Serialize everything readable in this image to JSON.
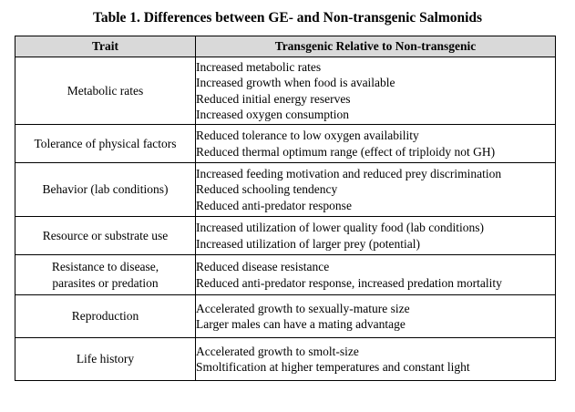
{
  "caption": "Table 1.  Differences between GE- and Non-transgenic Salmonids",
  "headers": {
    "trait": "Trait",
    "difference": "Transgenic Relative to Non-transgenic"
  },
  "rows": [
    {
      "trait": [
        "Metabolic rates"
      ],
      "differences": [
        "Increased metabolic rates",
        "Increased growth when food is available",
        "Reduced initial energy reserves",
        "Increased oxygen consumption"
      ]
    },
    {
      "trait": [
        "Tolerance of physical factors"
      ],
      "differences": [
        "Reduced tolerance to low oxygen availability",
        "Reduced thermal optimum range (effect of triploidy not GH)"
      ]
    },
    {
      "trait": [
        "Behavior (lab conditions)"
      ],
      "differences": [
        "Increased feeding motivation and reduced prey discrimination",
        "Reduced schooling tendency",
        "Reduced anti-predator response"
      ]
    },
    {
      "trait": [
        "Resource or substrate use"
      ],
      "differences": [
        "Increased utilization of lower quality food (lab conditions)",
        "Increased utilization of larger prey (potential)"
      ]
    },
    {
      "trait": [
        "Resistance to disease,",
        "parasites or predation"
      ],
      "differences": [
        "Reduced disease resistance",
        "Reduced anti-predator response, increased predation mortality"
      ]
    },
    {
      "trait": [
        "Reproduction"
      ],
      "differences": [
        "Accelerated growth to sexually-mature size",
        "Larger males can have a mating advantage"
      ]
    },
    {
      "trait": [
        "Life history"
      ],
      "differences": [
        "Accelerated growth to smolt-size",
        "Smoltification at higher temperatures and constant light"
      ]
    }
  ]
}
